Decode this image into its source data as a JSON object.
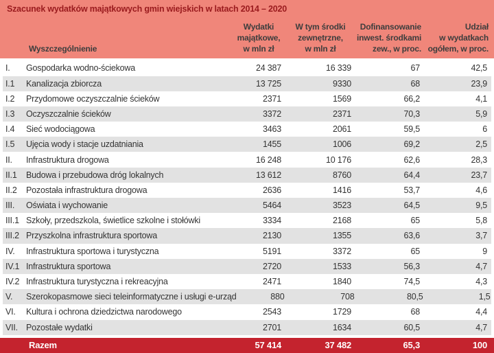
{
  "chart_data": {
    "type": "table",
    "title": "Szacunek wydatków majątkowych gmin wiejskich w latach 2014 – 2020",
    "columns": [
      {
        "key": "wyszczegolnienie",
        "lines": [
          "Wyszczególnienie"
        ]
      },
      {
        "key": "wydatki_majatkowe",
        "lines": [
          "Wydatki",
          "majątkowe,",
          "w mln zł"
        ]
      },
      {
        "key": "srodki_zewnetrzne",
        "lines": [
          "W tym środki",
          "zewnętrzne,",
          "w mln zł"
        ]
      },
      {
        "key": "dofinansowanie",
        "lines": [
          "Dofinansowanie",
          "inwest. środkami",
          "zew., w proc."
        ]
      },
      {
        "key": "udzial",
        "lines": [
          "Udział",
          "w wydatkach",
          "ogółem, w proc."
        ]
      }
    ],
    "rows": [
      {
        "no": "I.",
        "label": "Gospodarka wodno-ściekowa",
        "wydatki": "24 387",
        "srodki": "16 339",
        "dofinansowanie": "67",
        "udzial": "42,5"
      },
      {
        "no": "I.1",
        "label": "Kanalizacja zbiorcza",
        "wydatki": "13 725",
        "srodki": "9330",
        "dofinansowanie": "68",
        "udzial": "23,9"
      },
      {
        "no": "I.2",
        "label": "Przydomowe oczyszczalnie ścieków",
        "wydatki": "2371",
        "srodki": "1569",
        "dofinansowanie": "66,2",
        "udzial": "4,1"
      },
      {
        "no": "I.3",
        "label": "Oczyszczalnie ścieków",
        "wydatki": "3372",
        "srodki": "2371",
        "dofinansowanie": "70,3",
        "udzial": "5,9"
      },
      {
        "no": "I.4",
        "label": "Sieć wodociągowa",
        "wydatki": "3463",
        "srodki": "2061",
        "dofinansowanie": "59,5",
        "udzial": "6"
      },
      {
        "no": "I.5",
        "label": "Ujęcia wody i stacje uzdatniania",
        "wydatki": "1455",
        "srodki": "1006",
        "dofinansowanie": "69,2",
        "udzial": "2,5"
      },
      {
        "no": "II.",
        "label": "Infrastruktura drogowa",
        "wydatki": "16 248",
        "srodki": "10 176",
        "dofinansowanie": "62,6",
        "udzial": "28,3"
      },
      {
        "no": "II.1",
        "label": "Budowa i przebudowa dróg lokalnych",
        "wydatki": "13 612",
        "srodki": "8760",
        "dofinansowanie": "64,4",
        "udzial": "23,7"
      },
      {
        "no": "II.2",
        "label": "Pozostała infrastruktura drogowa",
        "wydatki": "2636",
        "srodki": "1416",
        "dofinansowanie": "53,7",
        "udzial": "4,6"
      },
      {
        "no": "III.",
        "label": "Oświata i wychowanie",
        "wydatki": "5464",
        "srodki": "3523",
        "dofinansowanie": "64,5",
        "udzial": "9,5"
      },
      {
        "no": "III.1",
        "label": "Szkoły, przedszkola, świetlice szkolne i stołówki",
        "wydatki": "3334",
        "srodki": "2168",
        "dofinansowanie": "65",
        "udzial": "5,8"
      },
      {
        "no": "III.2",
        "label": "Przyszkolna infrastruktura sportowa",
        "wydatki": "2130",
        "srodki": "1355",
        "dofinansowanie": "63,6",
        "udzial": "3,7"
      },
      {
        "no": "IV.",
        "label": "Infrastruktura sportowa i turystyczna",
        "wydatki": "5191",
        "srodki": "3372",
        "dofinansowanie": "65",
        "udzial": "9"
      },
      {
        "no": "IV.1",
        "label": "Infrastruktura sportowa",
        "wydatki": "2720",
        "srodki": "1533",
        "dofinansowanie": "56,3",
        "udzial": "4,7"
      },
      {
        "no": "IV.2",
        "label": "Infrastruktura turystyczna i rekreacyjna",
        "wydatki": "2471",
        "srodki": "1840",
        "dofinansowanie": "74,5",
        "udzial": "4,3"
      },
      {
        "no": "V.",
        "label": "Szerokopasmowe sieci teleinformatyczne i usługi e-urząd",
        "wydatki": "880",
        "srodki": "708",
        "dofinansowanie": "80,5",
        "udzial": "1,5"
      },
      {
        "no": "VI.",
        "label": "Kultura i ochrona dziedzictwa narodowego",
        "wydatki": "2543",
        "srodki": "1729",
        "dofinansowanie": "68",
        "udzial": "4,4"
      },
      {
        "no": "VII.",
        "label": "Pozostałe wydatki",
        "wydatki": "2701",
        "srodki": "1634",
        "dofinansowanie": "60,5",
        "udzial": "4,7"
      }
    ],
    "total": {
      "label": "Razem",
      "wydatki": "57 414",
      "srodki": "37 482",
      "dofinansowanie": "65,3",
      "udzial": "100"
    },
    "layout": {
      "striped": true,
      "first_row_bg": "white",
      "legend": "none",
      "grid": "off"
    }
  },
  "colors": {
    "header_bg": "#f0867a",
    "title_text": "#9a1b1e",
    "header_text": "#3d3d3d",
    "stripe_bg": "#e2e2e2",
    "row_text": "#333333",
    "total_bg": "#c4232e",
    "total_text": "#ffffff"
  }
}
